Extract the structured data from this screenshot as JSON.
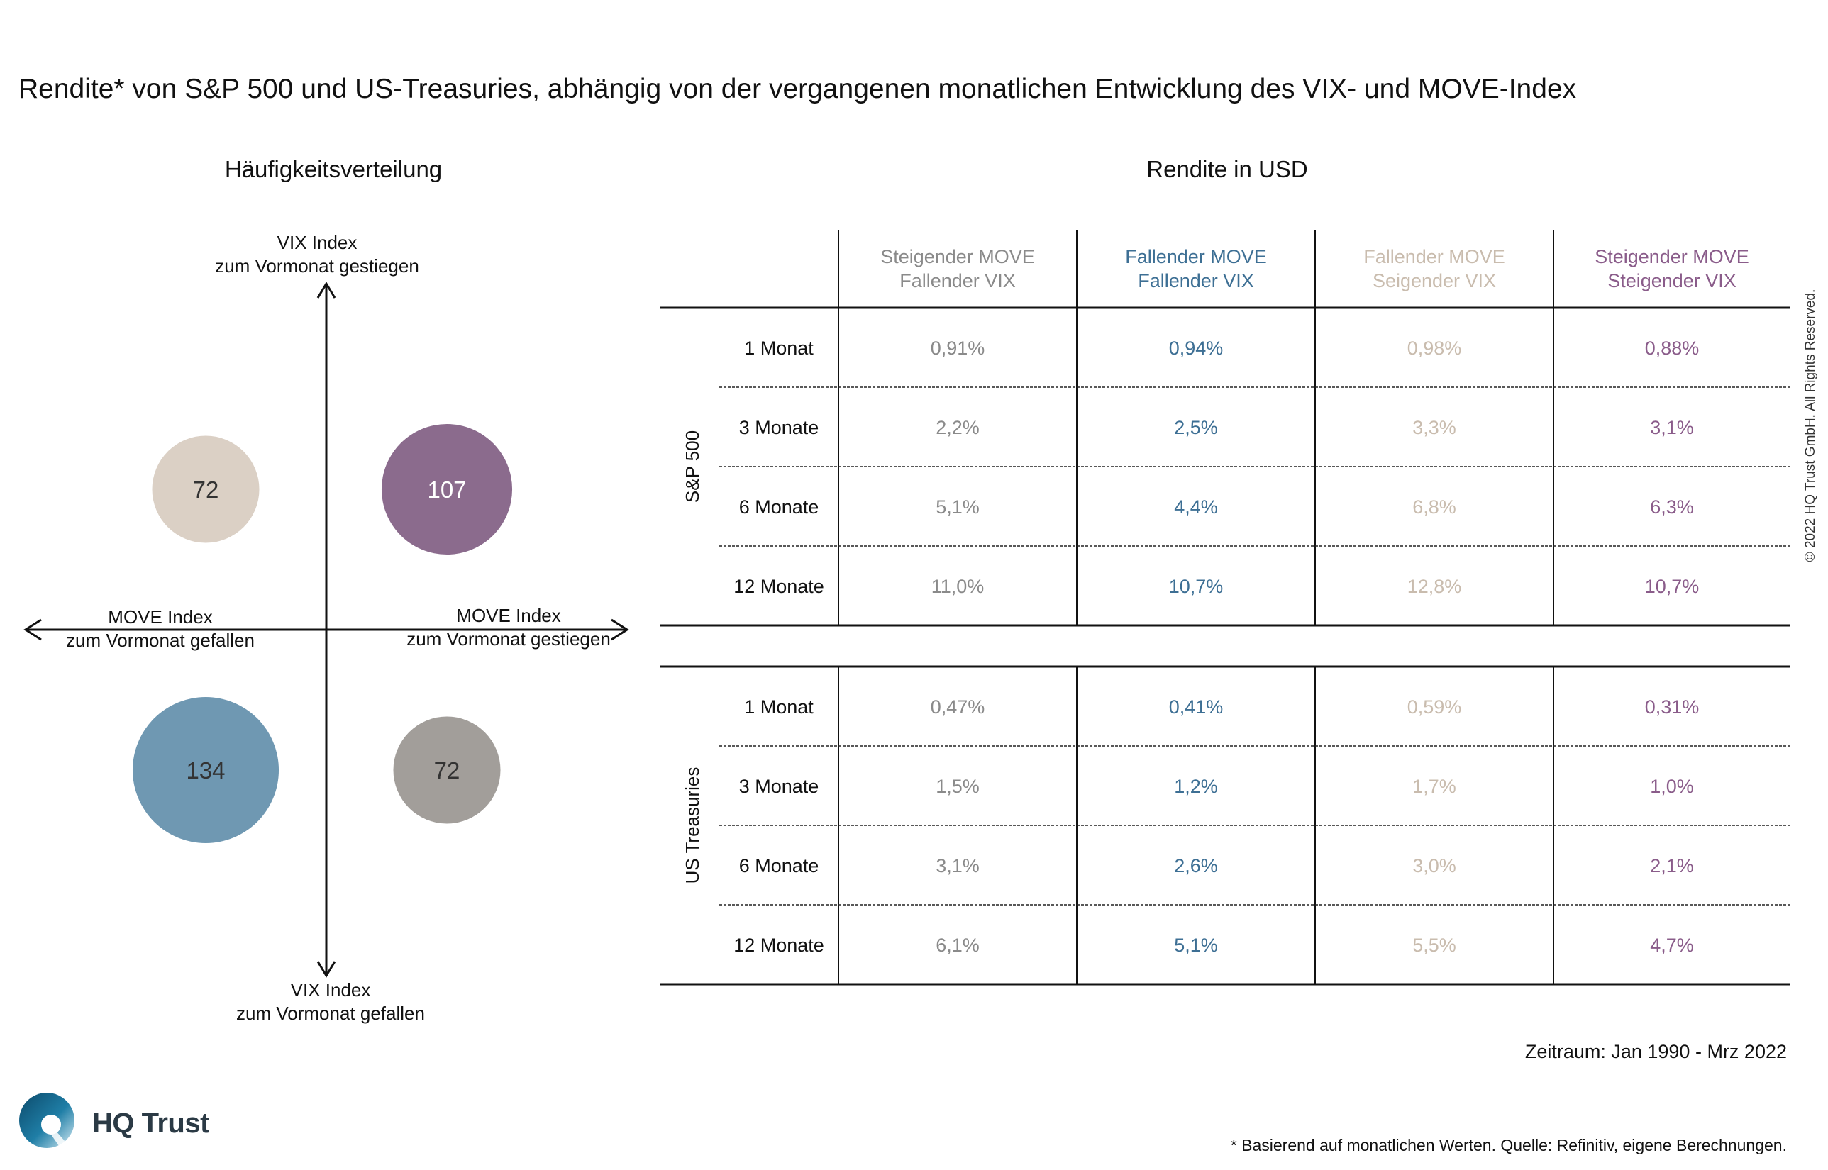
{
  "title": "Rendite* von S&P 500 und US-Treasuries, abhängig von der vergangenen monatlichen Entwicklung des VIX- und MOVE-Index",
  "left_heading": "Häufigkeitsverteilung",
  "right_heading": "Rendite in USD",
  "quadrant": {
    "top_label_1": "VIX Index",
    "top_label_2": "zum Vormonat gestiegen",
    "bottom_label_1": "VIX Index",
    "bottom_label_2": "zum Vormonat gefallen",
    "left_label_1": "MOVE Index",
    "left_label_2": "zum Vormonat gefallen",
    "right_label_1": "MOVE Index",
    "right_label_2": "zum Vormonat gestiegen"
  },
  "table": {
    "columns": [
      {
        "line1": "Steigender MOVE",
        "line2": "Fallender VIX",
        "color": "#8a8a8a"
      },
      {
        "line1": "Fallender MOVE",
        "line2": "Fallender VIX",
        "color": "#3d6f94"
      },
      {
        "line1": "Fallender MOVE",
        "line2": "Seigender VIX",
        "color": "#c9bcae"
      },
      {
        "line1": "Steigender MOVE",
        "line2": "Steigender VIX",
        "color": "#8a5c8a"
      }
    ],
    "groups": [
      {
        "label": "S&P 500",
        "rows": [
          {
            "period": "1 Monat",
            "values": [
              "0,91%",
              "0,94%",
              "0,98%",
              "0,88%"
            ]
          },
          {
            "period": "3 Monate",
            "values": [
              "2,2%",
              "2,5%",
              "3,3%",
              "3,1%"
            ]
          },
          {
            "period": "6 Monate",
            "values": [
              "5,1%",
              "4,4%",
              "6,8%",
              "6,3%"
            ]
          },
          {
            "period": "12 Monate",
            "values": [
              "11,0%",
              "10,7%",
              "12,8%",
              "10,7%"
            ]
          }
        ]
      },
      {
        "label": "US Treasuries",
        "rows": [
          {
            "period": "1 Monat",
            "values": [
              "0,47%",
              "0,41%",
              "0,59%",
              "0,31%"
            ]
          },
          {
            "period": "3 Monate",
            "values": [
              "1,5%",
              "1,2%",
              "1,7%",
              "1,0%"
            ]
          },
          {
            "period": "6 Monate",
            "values": [
              "3,1%",
              "2,6%",
              "3,0%",
              "2,1%"
            ]
          },
          {
            "period": "12 Monate",
            "values": [
              "6,1%",
              "5,1%",
              "5,5%",
              "4,7%"
            ]
          }
        ]
      }
    ]
  },
  "chart_data": [
    {
      "type": "scatter",
      "title": "Häufigkeitsverteilung",
      "xlabel": "MOVE Index",
      "ylabel": "VIX Index",
      "xlim": [
        -1,
        1
      ],
      "ylim": [
        -1,
        1
      ],
      "points": [
        {
          "x": -1,
          "y": 1,
          "size": 72,
          "label": "72",
          "color": "#dbd0c5",
          "label_color": "#333333"
        },
        {
          "x": 1,
          "y": 1,
          "size": 107,
          "label": "107",
          "color": "#8b6b8d",
          "label_color": "#ffffff"
        },
        {
          "x": -1,
          "y": -1,
          "size": 134,
          "label": "134",
          "color": "#6f98b2",
          "label_color": "#333333"
        },
        {
          "x": 1,
          "y": -1,
          "size": 72,
          "label": "72",
          "color": "#a29e9a",
          "label_color": "#333333"
        }
      ]
    },
    {
      "type": "table",
      "title": "Rendite in USD",
      "columns": [
        "Steigender MOVE Fallender VIX",
        "Fallender MOVE Fallender VIX",
        "Fallender MOVE Seigender VIX",
        "Steigender MOVE Steigender VIX"
      ],
      "rows": [
        {
          "group": "S&P 500",
          "period": "1 Monat",
          "values": [
            0.91,
            0.94,
            0.98,
            0.88
          ]
        },
        {
          "group": "S&P 500",
          "period": "3 Monate",
          "values": [
            2.2,
            2.5,
            3.3,
            3.1
          ]
        },
        {
          "group": "S&P 500",
          "period": "6 Monate",
          "values": [
            5.1,
            4.4,
            6.8,
            6.3
          ]
        },
        {
          "group": "S&P 500",
          "period": "12 Monate",
          "values": [
            11.0,
            10.7,
            12.8,
            10.7
          ]
        },
        {
          "group": "US Treasuries",
          "period": "1 Monat",
          "values": [
            0.47,
            0.41,
            0.59,
            0.31
          ]
        },
        {
          "group": "US Treasuries",
          "period": "3 Monate",
          "values": [
            1.5,
            1.2,
            1.7,
            1.0
          ]
        },
        {
          "group": "US Treasuries",
          "period": "6 Monate",
          "values": [
            3.1,
            2.6,
            3.0,
            2.1
          ]
        },
        {
          "group": "US Treasuries",
          "period": "12 Monate",
          "values": [
            6.1,
            5.1,
            5.5,
            4.7
          ]
        }
      ]
    }
  ],
  "zeitraum": "Zeitraum: Jan 1990 - Mrz 2022",
  "footnote": "* Basierend auf monatlichen Werten. Quelle: Refinitiv, eigene Berechnungen.",
  "copyright": "© 2022 HQ Trust GmbH. All Rights Reserved.",
  "logo": {
    "name": "HQ Trust",
    "icon": "hq-trust-logo-icon"
  }
}
